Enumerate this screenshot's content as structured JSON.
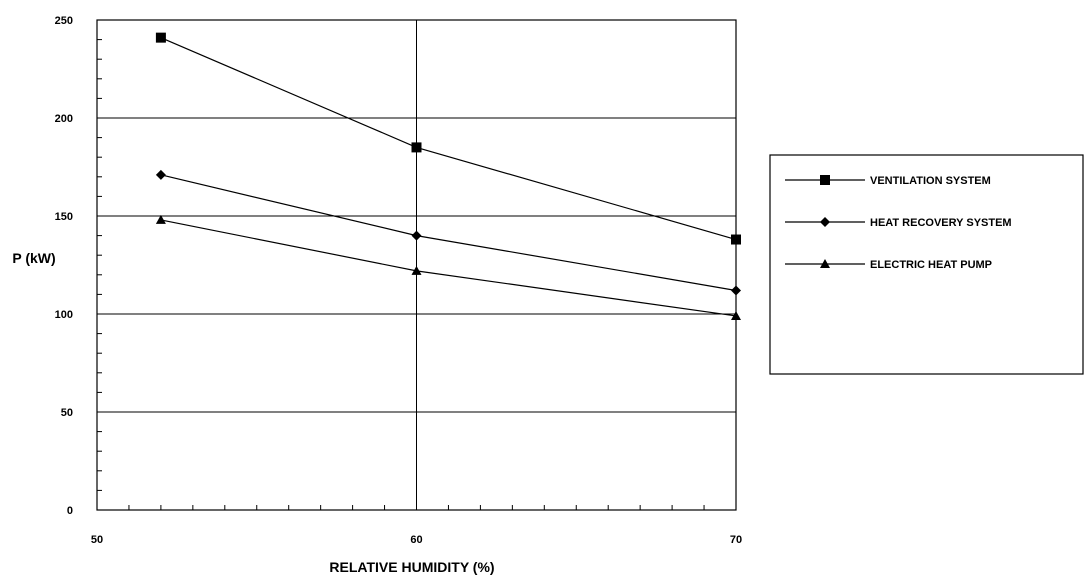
{
  "chart_data": {
    "type": "line",
    "title": "",
    "xlabel": "RELATIVE HUMIDITY (%)",
    "ylabel": "P (kW)",
    "xlim": [
      50,
      70
    ],
    "ylim": [
      0,
      250
    ],
    "x_ticks": [
      50,
      60,
      70
    ],
    "y_ticks": [
      0,
      50,
      100,
      150,
      200,
      250
    ],
    "x_tick_labels": [
      "50",
      "60",
      "70"
    ],
    "y_tick_labels": [
      "0",
      "50",
      "100",
      "150",
      "200",
      "250"
    ],
    "grid": "horizontal at y ticks, vertical at x = 60 and 70",
    "legend_position": "right",
    "series": [
      {
        "name": "VENTILATION SYSTEM",
        "marker": "square",
        "x": [
          52,
          60,
          70
        ],
        "y": [
          241,
          185,
          138
        ]
      },
      {
        "name": "HEAT RECOVERY SYSTEM",
        "marker": "diamond",
        "x": [
          52,
          60,
          70
        ],
        "y": [
          171,
          140,
          112
        ]
      },
      {
        "name": "ELECTRIC HEAT PUMP",
        "marker": "triangle",
        "x": [
          52,
          60,
          70
        ],
        "y": [
          148,
          122,
          99
        ]
      }
    ]
  }
}
